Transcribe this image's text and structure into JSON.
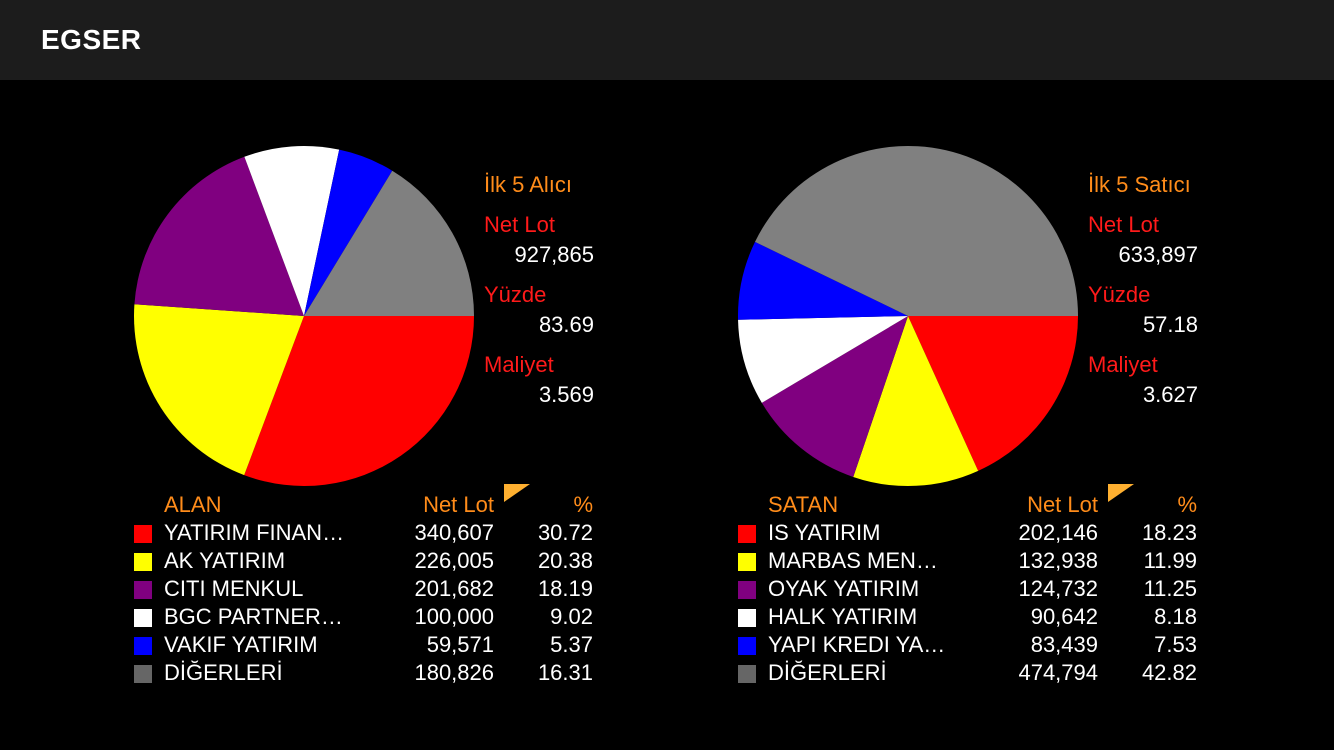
{
  "app": {
    "title": "EGSER"
  },
  "colors": {
    "red": "#ff0000",
    "yellow": "#ffff00",
    "purple": "#800080",
    "white": "#ffffff",
    "blue": "#0000ff",
    "gray": "#808080",
    "gray_swatch": "#666666",
    "orange": "#ff8c1a"
  },
  "buyers": {
    "heading": "İlk 5 Alıcı",
    "net_lot_label": "Net Lot",
    "net_lot_value": "927,865",
    "percent_label": "Yüzde",
    "percent_value": "83.69",
    "cost_label": "Maliyet",
    "cost_value": "3.569",
    "table": {
      "col_name": "ALAN",
      "col_lot": "Net Lot",
      "col_pct": "%",
      "sort_icon": "sort-corner-icon",
      "rows": [
        {
          "name": "YATIRIM FINAN…",
          "lot": "340,607",
          "pct": "30.72",
          "color": "#ff0000"
        },
        {
          "name": "AK YATIRIM",
          "lot": "226,005",
          "pct": "20.38",
          "color": "#ffff00"
        },
        {
          "name": "CITI MENKUL",
          "lot": "201,682",
          "pct": "18.19",
          "color": "#800080"
        },
        {
          "name": "BGC PARTNER…",
          "lot": "100,000",
          "pct": "9.02",
          "color": "#ffffff"
        },
        {
          "name": "VAKIF YATIRIM",
          "lot": "59,571",
          "pct": "5.37",
          "color": "#0000ff"
        },
        {
          "name": "DİĞERLERİ",
          "lot": "180,826",
          "pct": "16.31",
          "color": "#666666"
        }
      ]
    }
  },
  "sellers": {
    "heading": "İlk 5 Satıcı",
    "net_lot_label": "Net Lot",
    "net_lot_value": "633,897",
    "percent_label": "Yüzde",
    "percent_value": "57.18",
    "cost_label": "Maliyet",
    "cost_value": "3.627",
    "table": {
      "col_name": "SATAN",
      "col_lot": "Net Lot",
      "col_pct": "%",
      "sort_icon": "sort-corner-icon",
      "rows": [
        {
          "name": "IS YATIRIM",
          "lot": "202,146",
          "pct": "18.23",
          "color": "#ff0000"
        },
        {
          "name": "MARBAS MEN…",
          "lot": "132,938",
          "pct": "11.99",
          "color": "#ffff00"
        },
        {
          "name": "OYAK YATIRIM",
          "lot": "124,732",
          "pct": "11.25",
          "color": "#800080"
        },
        {
          "name": "HALK YATIRIM",
          "lot": "90,642",
          "pct": "8.18",
          "color": "#ffffff"
        },
        {
          "name": "YAPI KREDI YA…",
          "lot": "83,439",
          "pct": "7.53",
          "color": "#0000ff"
        },
        {
          "name": "DİĞERLERİ",
          "lot": "474,794",
          "pct": "42.82",
          "color": "#666666"
        }
      ]
    }
  },
  "chart_data": [
    {
      "type": "pie",
      "categories": [
        "YATIRIM FINAN…",
        "AK YATIRIM",
        "CITI MENKUL",
        "BGC PARTNER…",
        "VAKIF YATIRIM",
        "DİĞERLERİ"
      ],
      "values": [
        30.72,
        20.38,
        18.19,
        9.02,
        5.37,
        16.31
      ],
      "colors": [
        "#ff0000",
        "#ffff00",
        "#800080",
        "#ffffff",
        "#0000ff",
        "#808080"
      ]
    },
    {
      "type": "pie",
      "categories": [
        "IS YATIRIM",
        "MARBAS MEN…",
        "OYAK YATIRIM",
        "HALK YATIRIM",
        "YAPI KREDI YA…",
        "DİĞERLERİ"
      ],
      "values": [
        18.23,
        11.99,
        11.25,
        8.18,
        7.53,
        42.82
      ],
      "colors": [
        "#ff0000",
        "#ffff00",
        "#800080",
        "#ffffff",
        "#0000ff",
        "#808080"
      ]
    }
  ]
}
